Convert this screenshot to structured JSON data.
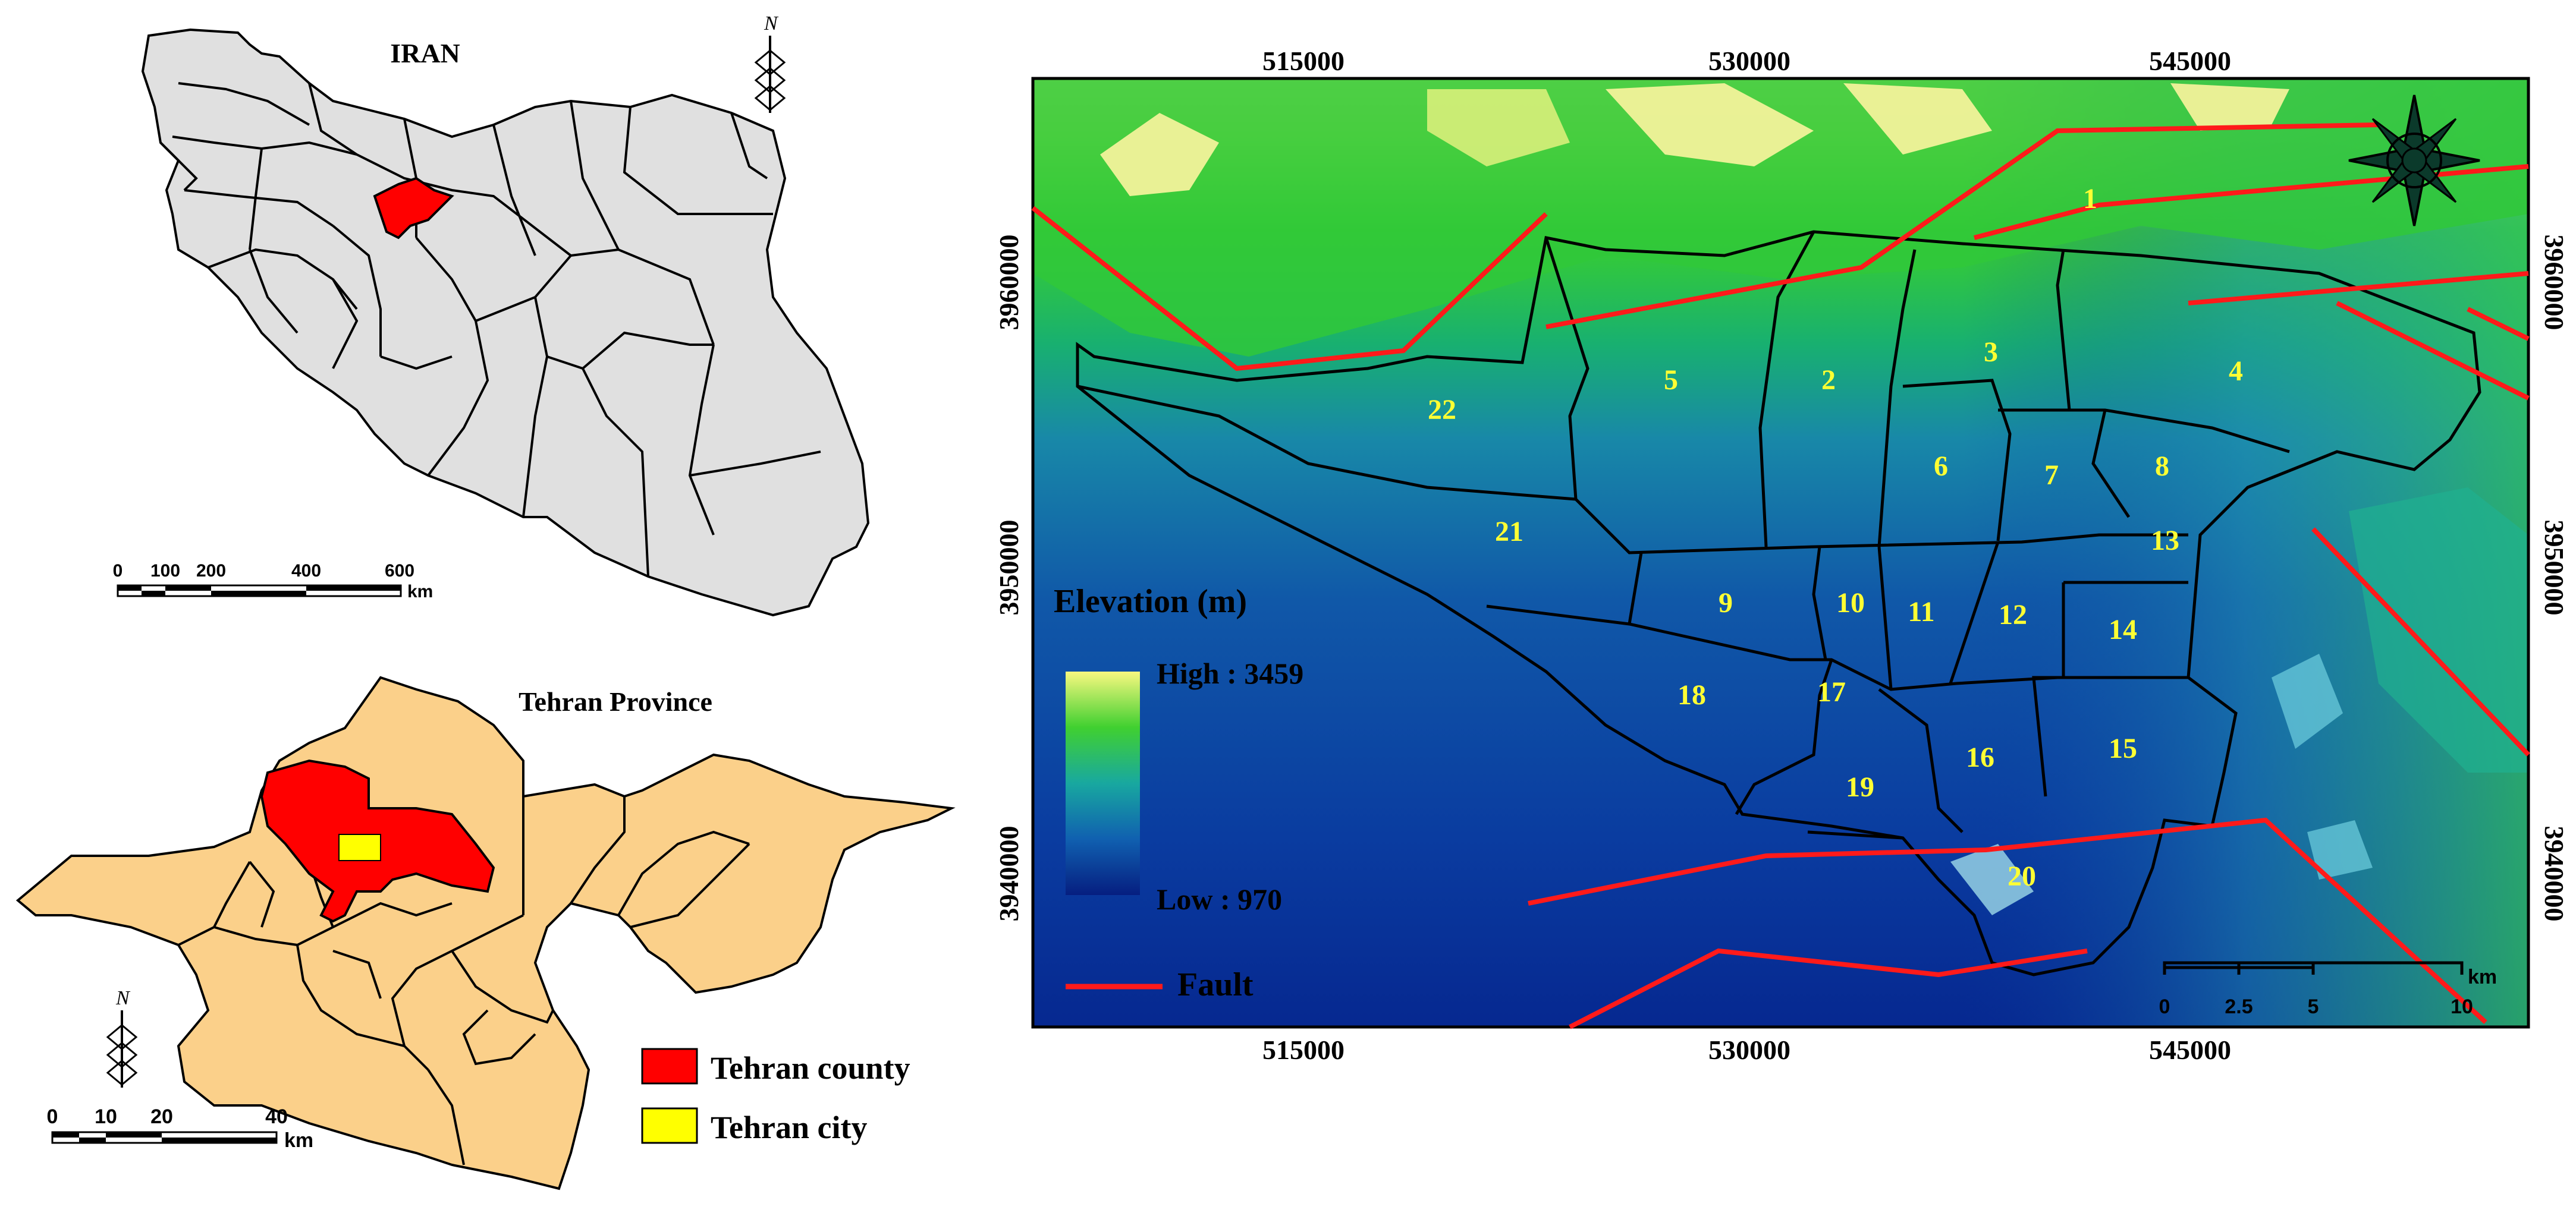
{
  "iran_map": {
    "title": "IRAN",
    "north_label": "N",
    "scale": {
      "labels": [
        "0",
        "100",
        "200",
        "400",
        "600"
      ],
      "unit": "km"
    }
  },
  "province_map": {
    "title": "Tehran Province",
    "north_label": "N",
    "scale": {
      "labels": [
        "0",
        "10",
        "20",
        "40"
      ],
      "unit": "km"
    },
    "legend": [
      {
        "label": "Tehran county",
        "color": "#ff0000"
      },
      {
        "label": "Tehran city",
        "color": "#ffff00"
      }
    ],
    "province_fill": "#fbd08a",
    "country_fill": "#e0e0e0"
  },
  "dem_map": {
    "x_ticks": [
      "515000",
      "530000",
      "545000"
    ],
    "y_ticks": [
      "3960000",
      "3950000",
      "3940000"
    ],
    "legend_title": "Elevation (m)",
    "high_label": "High : 3459",
    "low_label": "Low : 970",
    "fault_label": "Fault",
    "fault_color": "#ff1a1a",
    "district_label_color": "#ffff33",
    "districts": [
      "1",
      "2",
      "3",
      "4",
      "5",
      "6",
      "7",
      "8",
      "9",
      "10",
      "11",
      "12",
      "13",
      "14",
      "15",
      "16",
      "17",
      "18",
      "19",
      "20",
      "21",
      "22"
    ],
    "scale": {
      "labels": [
        "0",
        "2.5",
        "5",
        "10"
      ],
      "unit": "km"
    }
  }
}
